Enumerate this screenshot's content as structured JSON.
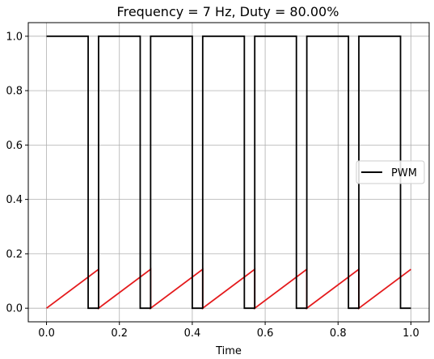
{
  "chart_data": {
    "type": "line",
    "title": "Frequency = 7 Hz, Duty = 80.00%",
    "xlabel": "Time",
    "ylabel": "",
    "xlim": [
      -0.05,
      1.05
    ],
    "ylim": [
      -0.05,
      1.05
    ],
    "xticks": [
      "0.0",
      "0.2",
      "0.4",
      "0.6",
      "0.8",
      "1.0"
    ],
    "yticks": [
      "0.0",
      "0.2",
      "0.4",
      "0.6",
      "0.8",
      "1.0"
    ],
    "grid": true,
    "legend": {
      "placement": "center-right",
      "entries": [
        "PWM"
      ]
    },
    "series": [
      {
        "name": "PWM",
        "color": "#000000",
        "style": "step",
        "x": [
          0.0,
          0.1143,
          0.1143,
          0.1429,
          0.1429,
          0.2571,
          0.2571,
          0.2857,
          0.2857,
          0.4,
          0.4,
          0.4286,
          0.4286,
          0.5429,
          0.5429,
          0.5714,
          0.5714,
          0.6857,
          0.6857,
          0.7143,
          0.7143,
          0.8286,
          0.8286,
          0.8571,
          0.8571,
          0.9714,
          0.9714,
          1.0
        ],
        "y": [
          1,
          1,
          0,
          0,
          1,
          1,
          0,
          0,
          1,
          1,
          0,
          0,
          1,
          1,
          0,
          0,
          1,
          1,
          0,
          0,
          1,
          1,
          0,
          0,
          1,
          1,
          0,
          0
        ]
      },
      {
        "color": "#e41a1c",
        "style": "sawtooth",
        "x": [
          0.0,
          0.1429,
          0.1429,
          0.2857,
          0.2857,
          0.4286,
          0.4286,
          0.5714,
          0.5714,
          0.7143,
          0.7143,
          0.8571,
          0.8571,
          1.0
        ],
        "y": [
          0.0,
          0.143,
          0.0,
          0.143,
          0.0,
          0.143,
          0.0,
          0.143,
          0.0,
          0.143,
          0.0,
          0.143,
          0.0,
          0.143
        ]
      }
    ]
  }
}
